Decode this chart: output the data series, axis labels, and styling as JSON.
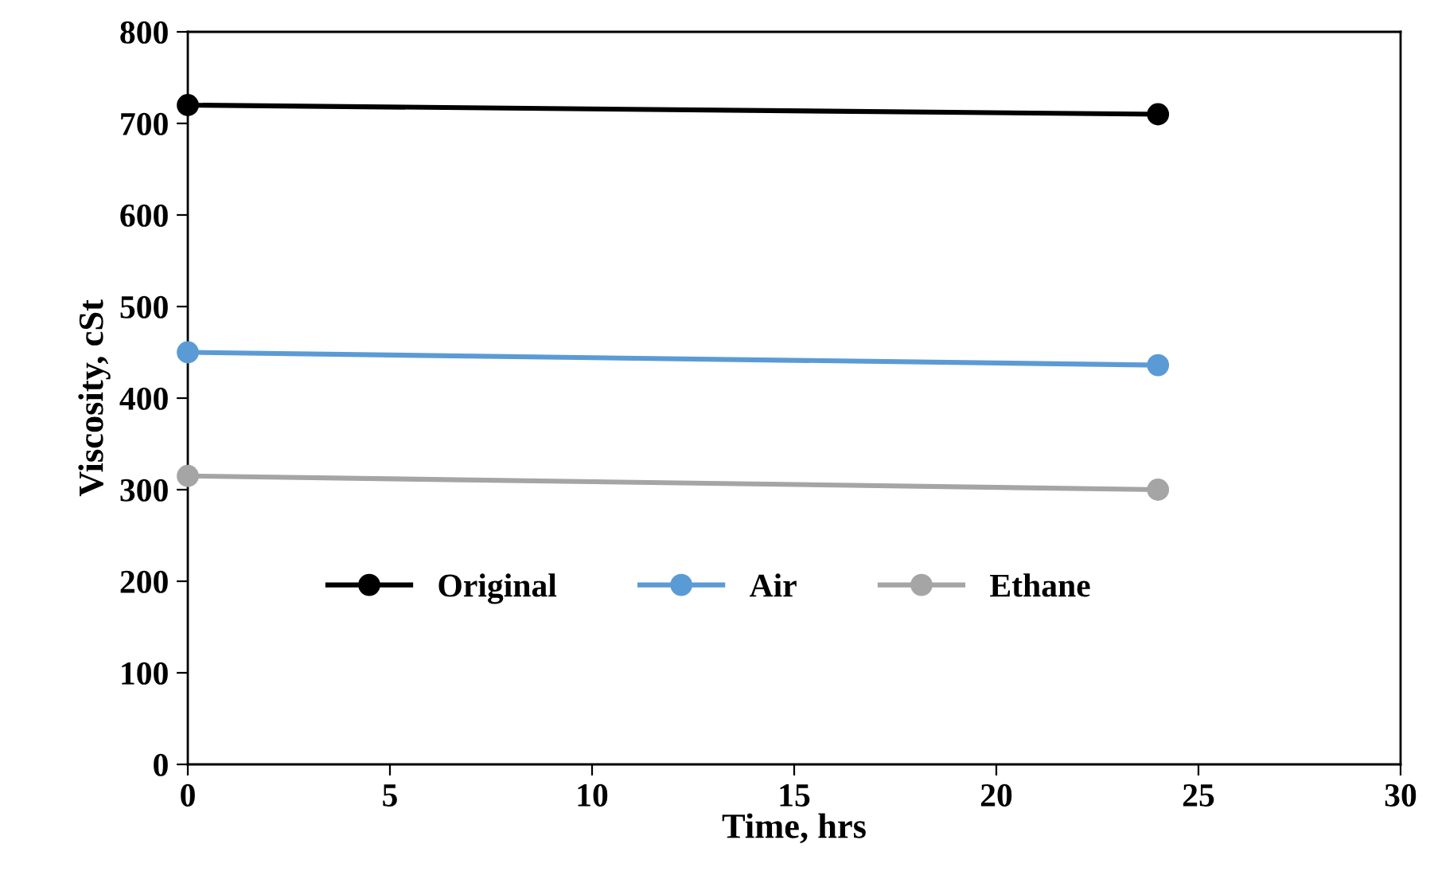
{
  "chart_data": {
    "type": "line",
    "xlabel": "Time, hrs",
    "ylabel": "Viscosity, cSt",
    "series": [
      {
        "name": "Original",
        "color": "#000000",
        "values": [
          720,
          710
        ]
      },
      {
        "name": "Air",
        "color": "#5b9bd5",
        "values": [
          450,
          436
        ]
      },
      {
        "name": "Ethane",
        "color": "#a5a5a5",
        "values": [
          315,
          300
        ]
      }
    ],
    "x": [
      0,
      24
    ],
    "xlim": [
      0,
      30
    ],
    "xticks": [
      0,
      5,
      10,
      15,
      20,
      25,
      30
    ],
    "ylim": [
      0,
      800
    ],
    "yticks": [
      0,
      100,
      200,
      300,
      400,
      500,
      600,
      700,
      800
    ],
    "grid": false,
    "legend": "center",
    "marker": "circle",
    "line_style": "solid"
  }
}
